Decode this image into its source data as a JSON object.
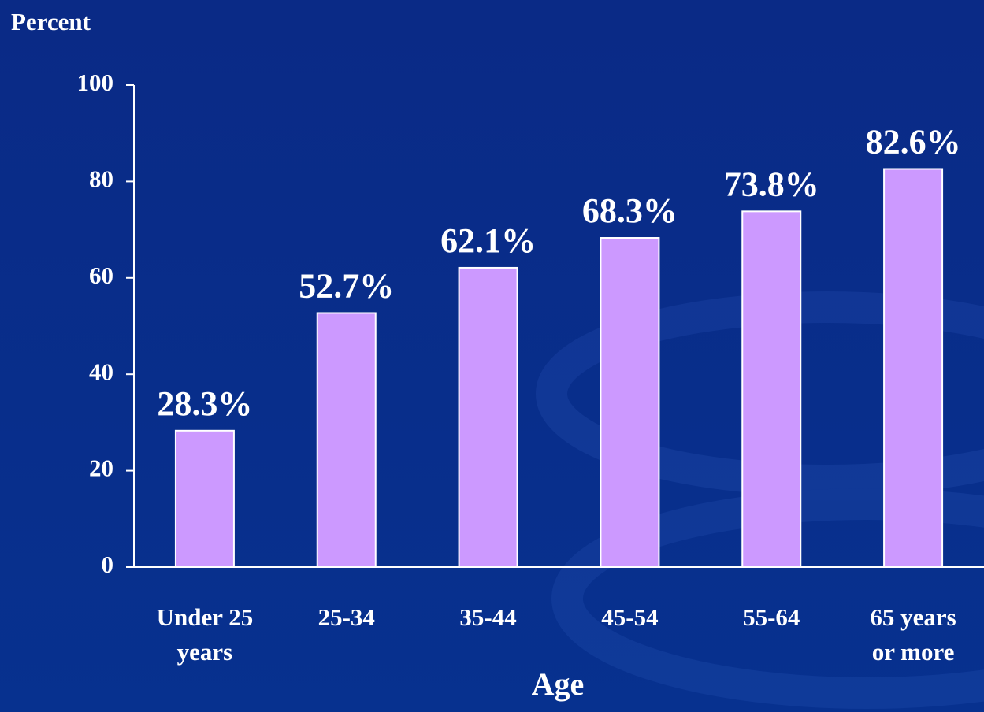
{
  "chart_data": {
    "type": "bar",
    "y_axis_label": "Percent",
    "x_axis_label": "Age",
    "categories": [
      "Under 25 years",
      "25-34",
      "35-44",
      "45-54",
      "55-64",
      "65 years or more"
    ],
    "values": [
      28.3,
      52.7,
      62.1,
      68.3,
      73.8,
      82.6
    ],
    "value_labels": [
      "28.3%",
      "52.7%",
      "62.1%",
      "68.3%",
      "73.8%",
      "82.6%"
    ],
    "color": "#cc99ff",
    "ylim": [
      0,
      100
    ],
    "yticks": [
      0,
      20,
      40,
      60,
      80,
      100
    ],
    "grid": false
  }
}
